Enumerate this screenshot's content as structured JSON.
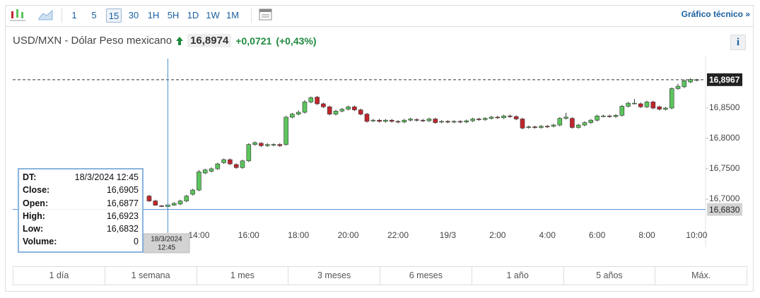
{
  "toolbar": {
    "intervals": [
      "1",
      "5",
      "15",
      "30",
      "1H",
      "5H",
      "1D",
      "1W",
      "1M"
    ],
    "active": "15",
    "link": "Gráfico técnico »"
  },
  "header": {
    "symbol": "USD/MXN - Dólar Peso mexicano",
    "price": "16,8974",
    "change": "+0,0721",
    "change_pct": "(+0,43%)",
    "info": "i"
  },
  "tooltip": {
    "rows": [
      [
        "DT:",
        "18/3/2024 12:45"
      ],
      [
        "Close:",
        "16,6905"
      ],
      [
        "Open:",
        "16,6877"
      ],
      [
        "High:",
        "16,6923"
      ],
      [
        "Low:",
        "16,6832"
      ],
      [
        "Volume:",
        "0"
      ]
    ]
  },
  "ranges": [
    "1 día",
    "1 semana",
    "1 mes",
    "3 meses",
    "6 meses",
    "1 año",
    "5 años",
    "Máx."
  ],
  "chart_data": {
    "type": "candlestick",
    "up_color": "#5cc45c",
    "down_color": "#c0262d",
    "ylim": [
      16.6267,
      16.9349
    ],
    "yticks": [
      {
        "value": 16.7,
        "label": "16,7000"
      },
      {
        "value": 16.75,
        "label": "16,7500"
      },
      {
        "value": 16.8,
        "label": "16,8000"
      },
      {
        "value": 16.85,
        "label": "16,8500"
      }
    ],
    "last": {
      "value": 16.8967,
      "label": "16,8967"
    },
    "crosshair": {
      "index": 3,
      "date": "18/3/2024",
      "time": "12:45",
      "value": 16.683,
      "label": "16,6830"
    },
    "categories": [
      null,
      null,
      null,
      null,
      null,
      null,
      null,
      null,
      "14:00",
      null,
      null,
      null,
      null,
      null,
      null,
      null,
      "16:00",
      null,
      null,
      null,
      null,
      null,
      null,
      null,
      "18:00",
      null,
      null,
      null,
      null,
      null,
      null,
      null,
      "20:00",
      null,
      null,
      null,
      null,
      null,
      null,
      null,
      "22:00",
      null,
      null,
      null,
      null,
      null,
      null,
      null,
      "19/3",
      null,
      null,
      null,
      null,
      null,
      null,
      null,
      "2:00",
      null,
      null,
      null,
      null,
      null,
      null,
      null,
      "4:00",
      null,
      null,
      null,
      null,
      null,
      null,
      null,
      "6:00",
      null,
      null,
      null,
      null,
      null,
      null,
      null,
      "8:00",
      null,
      null,
      null,
      null,
      null,
      null,
      null,
      "10:00"
    ],
    "candles": [
      {
        "open": 16.705,
        "high": 16.707,
        "low": 16.695,
        "close": 16.697
      },
      {
        "open": 16.697,
        "high": 16.699,
        "low": 16.689,
        "close": 16.69
      },
      {
        "open": 16.689,
        "high": 16.69,
        "low": 16.687,
        "close": 16.688
      },
      {
        "open": 16.6877,
        "high": 16.6923,
        "low": 16.6832,
        "close": 16.6905
      },
      {
        "open": 16.69,
        "high": 16.695,
        "low": 16.689,
        "close": 16.693
      },
      {
        "open": 16.692,
        "high": 16.699,
        "low": 16.69,
        "close": 16.697
      },
      {
        "open": 16.697,
        "high": 16.707,
        "low": 16.695,
        "close": 16.705
      },
      {
        "open": 16.708,
        "high": 16.717,
        "low": 16.706,
        "close": 16.715
      },
      {
        "open": 16.715,
        "high": 16.748,
        "low": 16.713,
        "close": 16.745
      },
      {
        "open": 16.743,
        "high": 16.75,
        "low": 16.741,
        "close": 16.748
      },
      {
        "open": 16.746,
        "high": 16.752,
        "low": 16.744,
        "close": 16.75
      },
      {
        "open": 16.75,
        "high": 16.76,
        "low": 16.748,
        "close": 16.758
      },
      {
        "open": 16.76,
        "high": 16.767,
        "low": 16.758,
        "close": 16.765
      },
      {
        "open": 16.765,
        "high": 16.767,
        "low": 16.756,
        "close": 16.758
      },
      {
        "open": 16.757,
        "high": 16.759,
        "low": 16.75,
        "close": 16.752
      },
      {
        "open": 16.752,
        "high": 16.765,
        "low": 16.75,
        "close": 16.763
      },
      {
        "open": 16.763,
        "high": 16.792,
        "low": 16.761,
        "close": 16.79
      },
      {
        "open": 16.79,
        "high": 16.795,
        "low": 16.788,
        "close": 16.793
      },
      {
        "open": 16.792,
        "high": 16.794,
        "low": 16.786,
        "close": 16.788
      },
      {
        "open": 16.788,
        "high": 16.792,
        "low": 16.786,
        "close": 16.79
      },
      {
        "open": 16.789,
        "high": 16.792,
        "low": 16.787,
        "close": 16.79
      },
      {
        "open": 16.79,
        "high": 16.792,
        "low": 16.786,
        "close": 16.788
      },
      {
        "open": 16.79,
        "high": 16.837,
        "low": 16.788,
        "close": 16.835
      },
      {
        "open": 16.835,
        "high": 16.842,
        "low": 16.833,
        "close": 16.84
      },
      {
        "open": 16.84,
        "high": 16.846,
        "low": 16.838,
        "close": 16.843
      },
      {
        "open": 16.843,
        "high": 16.863,
        "low": 16.841,
        "close": 16.86
      },
      {
        "open": 16.86,
        "high": 16.869,
        "low": 16.858,
        "close": 16.867
      },
      {
        "open": 16.868,
        "high": 16.87,
        "low": 16.855,
        "close": 16.857
      },
      {
        "open": 16.857,
        "high": 16.859,
        "low": 16.85,
        "close": 16.852
      },
      {
        "open": 16.852,
        "high": 16.854,
        "low": 16.838,
        "close": 16.84
      },
      {
        "open": 16.84,
        "high": 16.847,
        "low": 16.838,
        "close": 16.845
      },
      {
        "open": 16.845,
        "high": 16.85,
        "low": 16.843,
        "close": 16.848
      },
      {
        "open": 16.848,
        "high": 16.854,
        "low": 16.846,
        "close": 16.852
      },
      {
        "open": 16.852,
        "high": 16.854,
        "low": 16.845,
        "close": 16.847
      },
      {
        "open": 16.847,
        "high": 16.849,
        "low": 16.838,
        "close": 16.84
      },
      {
        "open": 16.84,
        "high": 16.842,
        "low": 16.826,
        "close": 16.828
      },
      {
        "open": 16.829,
        "high": 16.832,
        "low": 16.827,
        "close": 16.83
      },
      {
        "open": 16.83,
        "high": 16.832,
        "low": 16.826,
        "close": 16.828
      },
      {
        "open": 16.828,
        "high": 16.832,
        "low": 16.826,
        "close": 16.83
      },
      {
        "open": 16.83,
        "high": 16.832,
        "low": 16.826,
        "close": 16.828
      },
      {
        "open": 16.828,
        "high": 16.83,
        "low": 16.825,
        "close": 16.827
      },
      {
        "open": 16.827,
        "high": 16.832,
        "low": 16.825,
        "close": 16.83
      },
      {
        "open": 16.83,
        "high": 16.834,
        "low": 16.828,
        "close": 16.832
      },
      {
        "open": 16.831,
        "high": 16.833,
        "low": 16.828,
        "close": 16.83
      },
      {
        "open": 16.83,
        "high": 16.832,
        "low": 16.827,
        "close": 16.829
      },
      {
        "open": 16.829,
        "high": 16.834,
        "low": 16.827,
        "close": 16.832
      },
      {
        "open": 16.832,
        "high": 16.834,
        "low": 16.824,
        "close": 16.826
      },
      {
        "open": 16.827,
        "high": 16.83,
        "low": 16.825,
        "close": 16.828
      },
      {
        "open": 16.828,
        "high": 16.83,
        "low": 16.825,
        "close": 16.827
      },
      {
        "open": 16.827,
        "high": 16.83,
        "low": 16.825,
        "close": 16.828
      },
      {
        "open": 16.828,
        "high": 16.83,
        "low": 16.825,
        "close": 16.827
      },
      {
        "open": 16.827,
        "high": 16.831,
        "low": 16.825,
        "close": 16.829
      },
      {
        "open": 16.829,
        "high": 16.834,
        "low": 16.827,
        "close": 16.832
      },
      {
        "open": 16.832,
        "high": 16.834,
        "low": 16.829,
        "close": 16.831
      },
      {
        "open": 16.831,
        "high": 16.835,
        "low": 16.829,
        "close": 16.833
      },
      {
        "open": 16.833,
        "high": 16.837,
        "low": 16.831,
        "close": 16.835
      },
      {
        "open": 16.835,
        "high": 16.837,
        "low": 16.832,
        "close": 16.834
      },
      {
        "open": 16.834,
        "high": 16.839,
        "low": 16.832,
        "close": 16.837
      },
      {
        "open": 16.837,
        "high": 16.839,
        "low": 16.834,
        "close": 16.836
      },
      {
        "open": 16.836,
        "high": 16.838,
        "low": 16.83,
        "close": 16.832
      },
      {
        "open": 16.832,
        "high": 16.834,
        "low": 16.815,
        "close": 16.817
      },
      {
        "open": 16.818,
        "high": 16.821,
        "low": 16.816,
        "close": 16.819
      },
      {
        "open": 16.819,
        "high": 16.821,
        "low": 16.816,
        "close": 16.818
      },
      {
        "open": 16.818,
        "high": 16.822,
        "low": 16.816,
        "close": 16.82
      },
      {
        "open": 16.82,
        "high": 16.822,
        "low": 16.817,
        "close": 16.819
      },
      {
        "open": 16.82,
        "high": 16.824,
        "low": 16.818,
        "close": 16.822
      },
      {
        "open": 16.822,
        "high": 16.835,
        "low": 16.82,
        "close": 16.833
      },
      {
        "open": 16.833,
        "high": 16.842,
        "low": 16.831,
        "close": 16.835
      },
      {
        "open": 16.833,
        "high": 16.835,
        "low": 16.816,
        "close": 16.818
      },
      {
        "open": 16.818,
        "high": 16.824,
        "low": 16.816,
        "close": 16.822
      },
      {
        "open": 16.822,
        "high": 16.828,
        "low": 16.82,
        "close": 16.826
      },
      {
        "open": 16.826,
        "high": 16.832,
        "low": 16.824,
        "close": 16.83
      },
      {
        "open": 16.83,
        "high": 16.839,
        "low": 16.828,
        "close": 16.837
      },
      {
        "open": 16.837,
        "high": 16.839,
        "low": 16.835,
        "close": 16.837
      },
      {
        "open": 16.837,
        "high": 16.839,
        "low": 16.834,
        "close": 16.836
      },
      {
        "open": 16.836,
        "high": 16.84,
        "low": 16.834,
        "close": 16.838
      },
      {
        "open": 16.838,
        "high": 16.855,
        "low": 16.836,
        "close": 16.853
      },
      {
        "open": 16.853,
        "high": 16.86,
        "low": 16.851,
        "close": 16.858
      },
      {
        "open": 16.858,
        "high": 16.865,
        "low": 16.856,
        "close": 16.858
      },
      {
        "open": 16.857,
        "high": 16.859,
        "low": 16.85,
        "close": 16.852
      },
      {
        "open": 16.852,
        "high": 16.862,
        "low": 16.85,
        "close": 16.86
      },
      {
        "open": 16.86,
        "high": 16.862,
        "low": 16.848,
        "close": 16.85
      },
      {
        "open": 16.852,
        "high": 16.854,
        "low": 16.846,
        "close": 16.848
      },
      {
        "open": 16.848,
        "high": 16.852,
        "low": 16.846,
        "close": 16.85
      },
      {
        "open": 16.85,
        "high": 16.884,
        "low": 16.848,
        "close": 16.882
      },
      {
        "open": 16.882,
        "high": 16.89,
        "low": 16.88,
        "close": 16.886
      },
      {
        "open": 16.885,
        "high": 16.897,
        "low": 16.883,
        "close": 16.895
      },
      {
        "open": 16.893,
        "high": 16.899,
        "low": 16.891,
        "close": 16.897
      },
      {
        "open": 16.896,
        "high": 16.898,
        "low": 16.894,
        "close": 16.8967
      }
    ]
  }
}
